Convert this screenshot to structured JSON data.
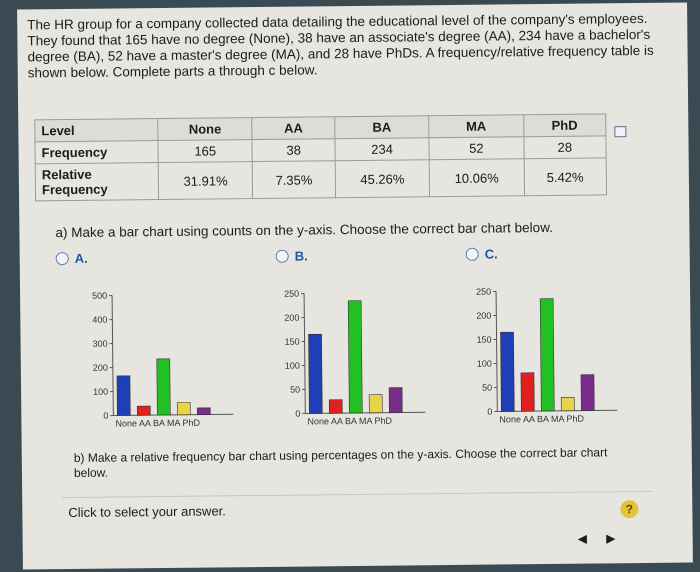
{
  "question_text": "The HR group for a company collected data detailing the educational level of the company's employees. They found that 165 have no degree (None), 38 have an associate's degree (AA), 234 have a bachelor's degree (BA), 52 have a master's degree (MA), and 28 have PhDs. A frequency/relative frequency table is shown below. Complete parts a through c below.",
  "table": {
    "headers": [
      "Level",
      "None",
      "AA",
      "BA",
      "MA",
      "PhD"
    ],
    "frequency_label": "Frequency",
    "frequency": [
      "165",
      "38",
      "234",
      "52",
      "28"
    ],
    "relative_label": "Relative Frequency",
    "relative": [
      "31.91%",
      "7.35%",
      "45.26%",
      "10.06%",
      "5.42%"
    ]
  },
  "copy_icon": "copy-icon",
  "part_a": "a) Make a bar chart using counts on the y-axis. Choose the correct bar chart below.",
  "options": [
    "A.",
    "B.",
    "C."
  ],
  "chart_data": [
    {
      "type": "bar",
      "categories": [
        "None",
        "AA",
        "BA",
        "MA",
        "PhD"
      ],
      "values": [
        165,
        38,
        234,
        52,
        28
      ],
      "ylim": [
        0,
        500
      ],
      "yticks": [
        0,
        100,
        200,
        300,
        400,
        500
      ],
      "colors": [
        "#1f3fb8",
        "#e02020",
        "#22c022",
        "#e8d44a",
        "#7a2c8a"
      ]
    },
    {
      "type": "bar",
      "categories": [
        "None",
        "AA",
        "BA",
        "MA",
        "PhD"
      ],
      "values": [
        165,
        28,
        234,
        38,
        52
      ],
      "ylim": [
        0,
        250
      ],
      "yticks": [
        0,
        50,
        100,
        150,
        200,
        250
      ],
      "colors": [
        "#1f3fb8",
        "#e02020",
        "#22c022",
        "#e8d44a",
        "#7a2c8a"
      ]
    },
    {
      "type": "bar",
      "categories": [
        "None",
        "AA",
        "BA",
        "MA",
        "PhD"
      ],
      "values": [
        165,
        80,
        234,
        28,
        75
      ],
      "ylim": [
        0,
        250
      ],
      "yticks": [
        0,
        50,
        100,
        150,
        200,
        250
      ],
      "colors": [
        "#1f3fb8",
        "#e02020",
        "#22c022",
        "#e8d44a",
        "#7a2c8a"
      ]
    }
  ],
  "part_b": "b) Make a relative frequency bar chart using percentages on the y-axis. Choose the correct bar chart below.",
  "footer_text": "Click to select your answer.",
  "help_label": "?",
  "nav_label": "◀ ▶"
}
